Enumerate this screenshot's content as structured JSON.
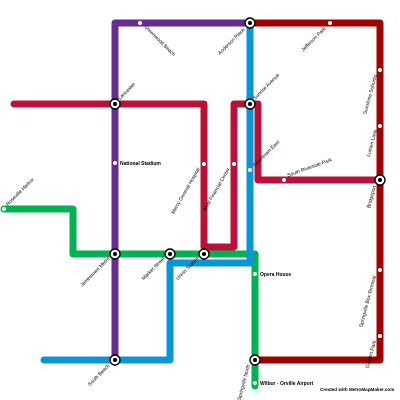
{
  "map": {
    "lines": [
      {
        "id": "purple",
        "color": "#662c90"
      },
      {
        "id": "blue",
        "color": "#0896d7"
      },
      {
        "id": "green",
        "color": "#00b251"
      },
      {
        "id": "crimson",
        "color": "#bd1038"
      },
      {
        "id": "maroon",
        "color": "#a00000"
      }
    ],
    "stations": {
      "greenwood_beach": "Greenwood Beach",
      "anderson_place": "Anderson Place",
      "jefferson_park": "Jefferson Park",
      "sunshine_suburbs": "Sunshine Suburbs",
      "lancaster": "Lancaster",
      "sunrise_avenue": "Sunrise Avenue",
      "lumen_lane": "Lumen Lane",
      "national_stadium": "National Stadium",
      "mercy_general_hospital": "Mercy General Hospital",
      "west_financial_center": "West Financial Center",
      "downtown_east": "Downtown East",
      "south_riverside_park": "South Riverside Park",
      "bridgeport": "Bridgeport",
      "roseville_harbor": "Roseville Harbor",
      "jamestown_metro": "Jamestown Metro",
      "market_street": "Market Street",
      "union_station": "Union Station",
      "opera_house": "Opera House",
      "springville_box_terminal": "Springville Box Terminal",
      "south_beach": "South Beach",
      "springville_north": "Springville North",
      "garden_park": "Garden Park",
      "wilbur_orville_airport": "Wilbur - Orville Airport"
    },
    "credit": "Created with MetroMapMaker.com"
  }
}
